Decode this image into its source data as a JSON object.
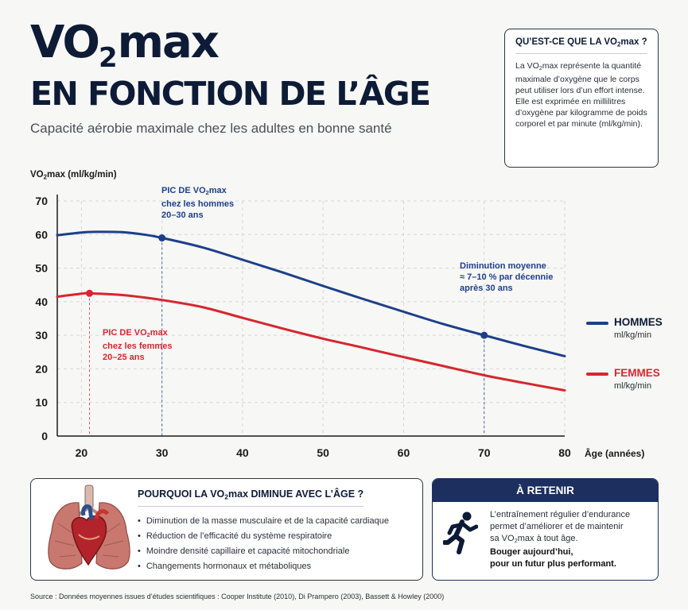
{
  "header": {
    "title_vo": "VO",
    "title_sub": "2",
    "title_max": "max",
    "title_line2": "EN FONCTION DE L’ÂGE",
    "subtitle": "Capacité aérobie maximale chez les adultes en bonne santé"
  },
  "info_box": {
    "title_a": "QU’EST-CE QUE LA VO",
    "title_b": "max ?",
    "text1_a": "La VO",
    "text1_b": "max représente la quantité maximale d’oxygène que le corps peut utiliser lors d’un effort intense.",
    "text2": "Elle est exprimée en millilitres d’oxygène par kilogramme de poids corporel et par minute (ml/kg/min)."
  },
  "chart_data": {
    "type": "line",
    "ylabel_a": "VO",
    "ylabel_b": "max (ml/kg/min)",
    "xlabel": "Âge (années)",
    "xlim": [
      17,
      80
    ],
    "ylim": [
      0,
      70
    ],
    "x_ticks": [
      20,
      30,
      40,
      50,
      60,
      70,
      80
    ],
    "y_ticks": [
      0,
      10,
      20,
      30,
      40,
      50,
      60,
      70
    ],
    "grid": true,
    "legend_position": "right",
    "series": [
      {
        "name": "HOMMES",
        "unit": "ml/kg/min",
        "color": "#1d3f8a",
        "x": [
          17,
          20,
          22,
          25,
          28,
          30,
          35,
          40,
          45,
          50,
          55,
          60,
          65,
          70,
          75,
          80
        ],
        "y": [
          59.8,
          60.6,
          60.8,
          60.7,
          59.9,
          59.0,
          56.2,
          52.5,
          48.7,
          44.7,
          40.8,
          37.0,
          33.3,
          30.0,
          26.8,
          23.8
        ],
        "marker": {
          "x": 30,
          "y": 59.0
        }
      },
      {
        "name": "FEMMES",
        "unit": "ml/kg/min",
        "color": "#d6262e",
        "x": [
          17,
          20,
          21,
          25,
          30,
          35,
          40,
          45,
          50,
          55,
          60,
          65,
          70,
          75,
          80
        ],
        "y": [
          41.5,
          42.4,
          42.5,
          42.0,
          40.5,
          38.4,
          35.2,
          32.0,
          29.0,
          26.3,
          23.5,
          20.8,
          18.1,
          15.8,
          13.6
        ],
        "marker": {
          "x": 21,
          "y": 42.5
        }
      }
    ],
    "reference_lines": [
      {
        "x": 30,
        "series": "HOMMES"
      },
      {
        "x": 21,
        "series": "FEMMES"
      },
      {
        "x": 70,
        "series": "HOMMES"
      }
    ],
    "annotations": {
      "men_peak": {
        "line1_a": "PIC DE VO",
        "line1_b": "max",
        "line2": "chez les hommes",
        "line3": "20–30 ans"
      },
      "women_peak": {
        "line1_a": "PIC DE VO",
        "line1_b": "max",
        "line2": "chez les femmes",
        "line3": "20–25 ans"
      },
      "decline": {
        "line1": "Diminution moyenne",
        "line2": "≈ 7–10 % par décennie",
        "line3": "après 30 ans"
      }
    }
  },
  "why_box": {
    "title_a": "POURQUOI LA VO",
    "title_b": "max DIMINUE AVEC L’ÂGE ?",
    "items": [
      "Diminution de la masse musculaire et de la capacité cardiaque",
      "Réduction de l’efficacité du système respiratoire",
      "Moindre densité capillaire et capacité mitochondriale",
      "Changements hormonaux et métaboliques"
    ],
    "icon": "heart-lungs-icon"
  },
  "retain_box": {
    "title": "À RETENIR",
    "line1": "L’entraînement régulier d’endurance",
    "line2": "permet d’améliorer et de maintenir",
    "line3_a": "sa VO",
    "line3_b": "max à tout âge.",
    "bold1": "Bouger aujourd’hui,",
    "bold2": "pour un futur plus performant.",
    "icon": "runner-icon"
  },
  "subscript": "2",
  "source": "Source : Données moyennes issues d’études scientifiques : Cooper Institute (2010), Di Prampero (2003), Bassett & Howley (2000)",
  "colors": {
    "navy": "#0d1b36",
    "blue": "#1d3f8a",
    "red": "#d6262e"
  }
}
